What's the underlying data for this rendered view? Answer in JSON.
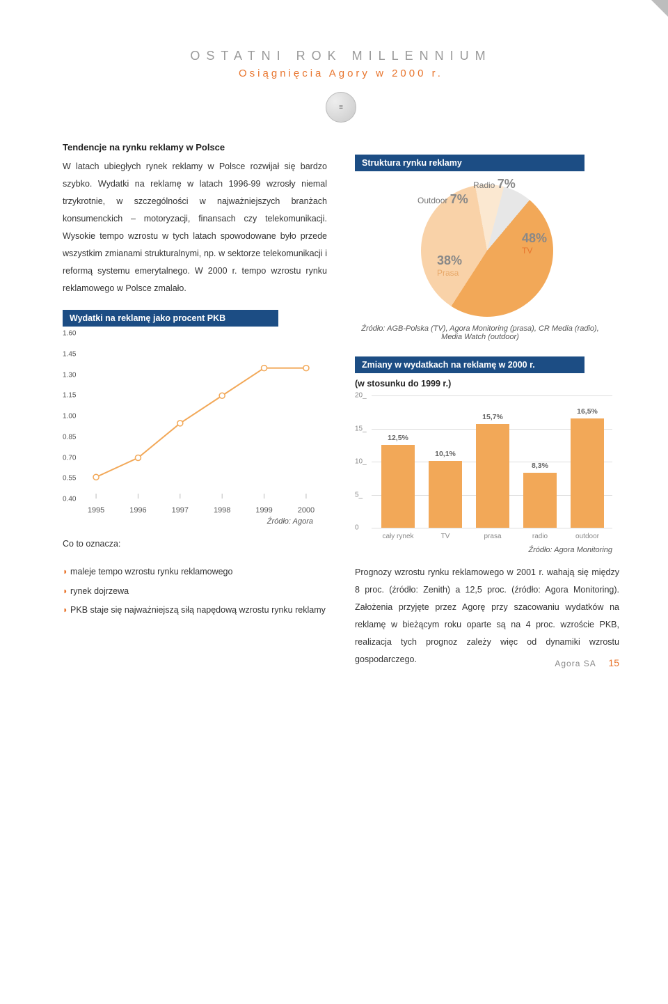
{
  "header": {
    "title": "OSTATNI ROK MILLENNIUM",
    "subtitle": "Osiągnięcia Agory w 2000 r."
  },
  "left": {
    "heading": "Tendencje na rynku reklamy w Polsce",
    "para": "W latach ubiegłych rynek reklamy w Polsce rozwijał się bardzo szybko. Wydatki na reklamę w latach 1996-99 wzrosły niemal trzykrotnie, w szczególności w najważniejszych branżach konsumenckich – motoryzacji, finansach czy telekomunikacji. Wysokie tempo wzrostu w tych latach spowodowane było przede wszystkim zmianami strukturalnymi, np. w sektorze telekomunikacji i reformą systemu emerytalnego. W 2000 r. tempo wzrostu rynku reklamowego w Polsce zmalało.",
    "chart_label": "Wydatki na reklamę jako procent PKB",
    "what_heading": "Co to oznacza:",
    "bullets": [
      "maleje tempo wzrostu rynku reklamowego",
      "rynek dojrzewa",
      "PKB staje się najważniejszą siłą napędową wzrostu rynku reklamy"
    ],
    "line_source": "Źródło: Agora"
  },
  "right": {
    "pie_label": "Struktura rynku reklamy",
    "pie_source": "Źródło: AGB-Polska (TV), Agora Monitoring (prasa), CR Media (radio), Media Watch (outdoor)",
    "bar_label": "Zmiany w wydatkach na reklamę w 2000 r.",
    "bar_sub": "(w stosunku do 1999 r.)",
    "bar_source": "Źródło: Agora Monitoring",
    "para2": "Prognozy wzrostu rynku reklamowego w 2001 r. wahają się między 8 proc. (źródło: Zenith) a 12,5 proc. (źródło: Agora Monitoring). Założenia przyjęte przez Agorę przy szacowaniu wydatków na reklamę w bieżącym roku oparte są na 4 proc. wzroście PKB, realizacja tych prognoz zależy więc od dynamiki wzrostu gospodarczego."
  },
  "line_chart": {
    "type": "line",
    "x": [
      1995,
      1996,
      1997,
      1998,
      1999,
      2000
    ],
    "y": [
      0.56,
      0.7,
      0.95,
      1.15,
      1.35,
      1.35
    ],
    "ylim": [
      0.4,
      1.6
    ],
    "yticks": [
      0.4,
      0.55,
      0.7,
      0.85,
      1.0,
      1.15,
      1.3,
      1.45,
      1.6
    ],
    "ytick_labels": [
      "0.40",
      "0.55",
      "0.70",
      "0.85",
      "1.00",
      "1.15",
      "1.30",
      "1.45",
      "1.60"
    ],
    "line_color": "#f2a858",
    "marker_stroke": "#f2a858",
    "marker_fill": "#ffffff",
    "marker_r": 4,
    "line_width": 2,
    "tick_color": "#bbbbbb"
  },
  "pie_chart": {
    "type": "pie",
    "slices": [
      {
        "label": "TV",
        "value": 48,
        "color": "#f2a858"
      },
      {
        "label": "Prasa",
        "value": 38,
        "color": "#f9d2a8"
      },
      {
        "label": "Outdoor",
        "value": 7,
        "color": "#fbe8d1"
      },
      {
        "label": "Radio",
        "value": 7,
        "color": "#e7e7e7"
      }
    ],
    "value_color": "#9a9a9a",
    "label_color": "#666666"
  },
  "bar_chart": {
    "type": "bar",
    "categories": [
      "cały rynek",
      "TV",
      "prasa",
      "radio",
      "outdoor"
    ],
    "values": [
      12.5,
      10.1,
      15.7,
      8.3,
      16.5
    ],
    "value_labels": [
      "12,5%",
      "10,1%",
      "15,7%",
      "8,3%",
      "16,5%"
    ],
    "bar_color": "#f2a858",
    "ylim": [
      0,
      20
    ],
    "yticks": [
      0,
      5,
      10,
      15,
      20
    ],
    "ytick_labels": [
      "0",
      "5_",
      "10_",
      "15_",
      "20_"
    ],
    "grid_color": "#dddddd"
  },
  "footer": {
    "company": "Agora SA",
    "page": "15"
  }
}
